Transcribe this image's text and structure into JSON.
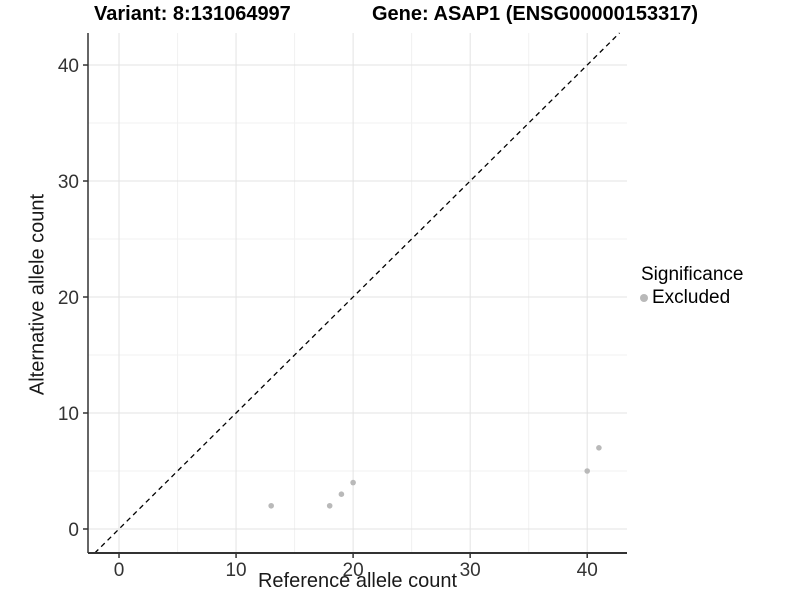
{
  "figure": {
    "variant_title": "Variant: 8:131064997",
    "gene_title": "Gene: ASAP1 (ENSG00000153317)"
  },
  "chart_data": {
    "type": "scatter",
    "xlabel": "Reference allele count",
    "ylabel": "Alternative allele count",
    "xlim": [
      -2.65,
      43.4
    ],
    "ylim": [
      -2.07,
      42.76
    ],
    "x_ticks": [
      0,
      10,
      20,
      30,
      40
    ],
    "y_ticks": [
      0,
      10,
      20,
      30,
      40
    ],
    "x_minor_ticks": [
      5,
      15,
      25,
      35
    ],
    "y_minor_ticks": [
      5,
      15,
      25,
      35
    ],
    "grid": "major+minor",
    "identity_line": {
      "equation": "y = x",
      "style": "dashed",
      "color": "#000000"
    },
    "series": [
      {
        "name": "Excluded",
        "color": "#b9b9b9",
        "points": [
          [
            13,
            2
          ],
          [
            18,
            2
          ],
          [
            19,
            3
          ],
          [
            20,
            4
          ],
          [
            40,
            5
          ],
          [
            41,
            7
          ]
        ]
      }
    ]
  },
  "legend": {
    "title": "Significance",
    "position": "right",
    "items": [
      {
        "label": "Excluded",
        "marker": "dot",
        "color": "#b9b9b9"
      }
    ]
  },
  "colors": {
    "background": "#ffffff",
    "grid_major": "#e3e3e3",
    "grid_minor": "#f1f1f1",
    "axis_line": "#333333",
    "tick_mark": "#333333",
    "tick_label": "#333333",
    "axis_title": "#1a1a1a",
    "plot_title": "#000000"
  }
}
